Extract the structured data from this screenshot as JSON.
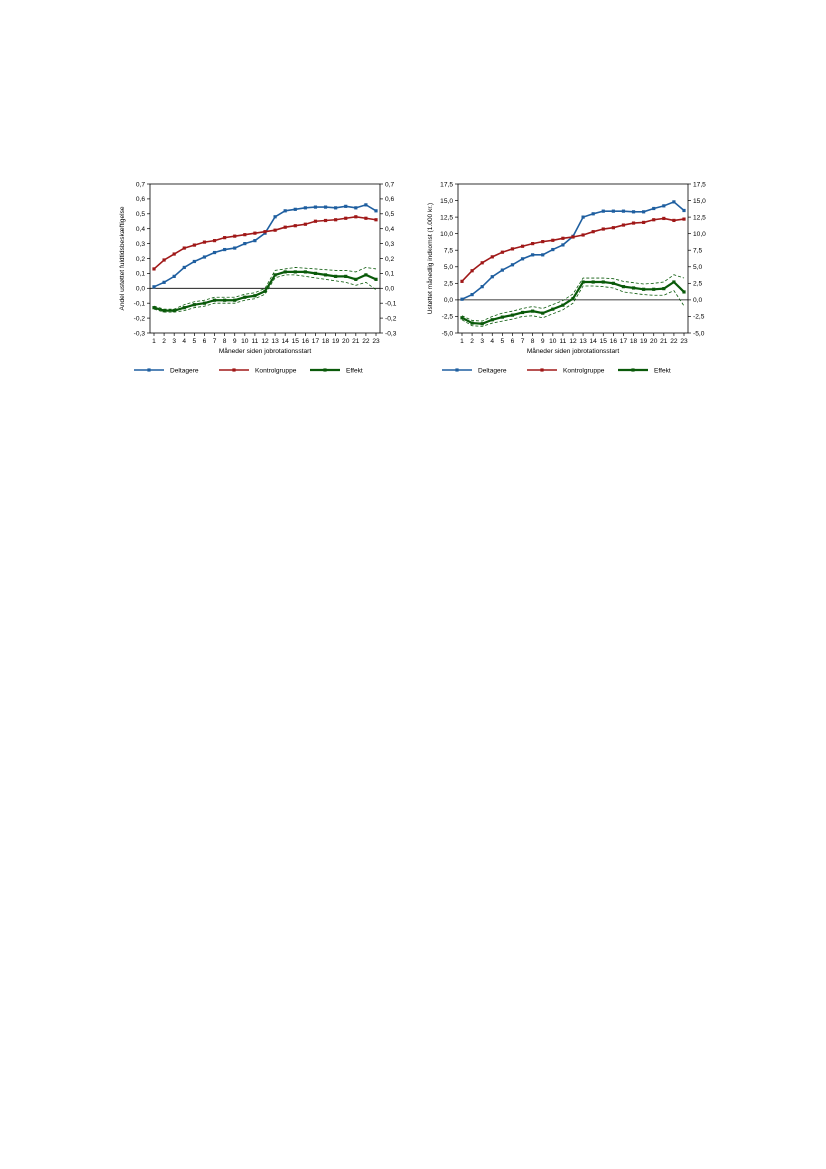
{
  "colors": {
    "deltagere": "#1f5fa0",
    "kontrolgruppe": "#a01818",
    "effekt": "#0a5a0a"
  },
  "chart_data": [
    {
      "type": "line",
      "ylabel": "Andel ustøttet fuldtidsbeskæftigelse",
      "xlabel": "Måneder siden jobrotationsstart",
      "x": [
        1,
        2,
        3,
        4,
        5,
        6,
        7,
        8,
        9,
        10,
        11,
        12,
        13,
        14,
        15,
        16,
        17,
        18,
        19,
        20,
        21,
        22,
        23
      ],
      "ylim": [
        -0.3,
        0.7
      ],
      "yticks": [
        -0.3,
        -0.2,
        -0.1,
        0.0,
        0.1,
        0.2,
        0.3,
        0.4,
        0.5,
        0.6,
        0.7
      ],
      "yticklabels": [
        "-0,3",
        "-0,2",
        "-0,1",
        "0,0",
        "0,1",
        "0,2",
        "0,3",
        "0,4",
        "0,5",
        "0,6",
        "0,7"
      ],
      "legend": "bottom",
      "zero_line": true,
      "series": [
        {
          "name": "Deltagere",
          "color_key": "deltagere",
          "values": [
            0.01,
            0.04,
            0.08,
            0.14,
            0.18,
            0.21,
            0.24,
            0.26,
            0.27,
            0.3,
            0.32,
            0.37,
            0.48,
            0.52,
            0.53,
            0.54,
            0.545,
            0.545,
            0.54,
            0.55,
            0.54,
            0.56,
            0.52
          ]
        },
        {
          "name": "Kontrolgruppe",
          "color_key": "kontrolgruppe",
          "values": [
            0.13,
            0.19,
            0.23,
            0.27,
            0.29,
            0.31,
            0.32,
            0.34,
            0.35,
            0.36,
            0.37,
            0.38,
            0.39,
            0.41,
            0.42,
            0.43,
            0.45,
            0.455,
            0.46,
            0.47,
            0.48,
            0.47,
            0.46
          ]
        },
        {
          "name": "Effekt",
          "color_key": "effekt",
          "bold": true,
          "values": [
            -0.13,
            -0.15,
            -0.15,
            -0.13,
            -0.11,
            -0.1,
            -0.08,
            -0.08,
            -0.08,
            -0.06,
            -0.05,
            -0.02,
            0.09,
            0.11,
            0.11,
            0.11,
            0.1,
            0.09,
            0.08,
            0.08,
            0.06,
            0.09,
            0.06
          ],
          "ci_upper": [
            -0.12,
            -0.14,
            -0.14,
            -0.11,
            -0.09,
            -0.08,
            -0.06,
            -0.06,
            -0.06,
            -0.04,
            -0.03,
            0.0,
            0.12,
            0.13,
            0.14,
            0.135,
            0.13,
            0.125,
            0.12,
            0.12,
            0.11,
            0.14,
            0.13
          ],
          "ci_lower": [
            -0.14,
            -0.16,
            -0.16,
            -0.15,
            -0.13,
            -0.12,
            -0.1,
            -0.1,
            -0.1,
            -0.08,
            -0.07,
            -0.04,
            0.07,
            0.09,
            0.09,
            0.08,
            0.07,
            0.06,
            0.05,
            0.04,
            0.02,
            0.04,
            -0.01
          ]
        }
      ]
    },
    {
      "type": "line",
      "ylabel": "Ustøttet månedlig indkomst (1.000 kr.)",
      "xlabel": "Måneder siden jobrotationsstart",
      "x": [
        1,
        2,
        3,
        4,
        5,
        6,
        7,
        8,
        9,
        10,
        11,
        12,
        13,
        14,
        15,
        16,
        17,
        18,
        19,
        20,
        21,
        22,
        23
      ],
      "ylim": [
        -5.0,
        17.5
      ],
      "yticks": [
        -5.0,
        -2.5,
        0.0,
        2.5,
        5.0,
        7.5,
        10.0,
        12.5,
        15.0,
        17.5
      ],
      "yticklabels": [
        "-5,0",
        "-2,5",
        "0,0",
        "2,5",
        "5,0",
        "7,5",
        "10,0",
        "12,5",
        "15,0",
        "17,5"
      ],
      "legend": "bottom",
      "zero_line": true,
      "series": [
        {
          "name": "Deltagere",
          "color_key": "deltagere",
          "values": [
            0.1,
            0.8,
            2.0,
            3.5,
            4.5,
            5.3,
            6.2,
            6.8,
            6.8,
            7.6,
            8.3,
            9.6,
            12.5,
            13.0,
            13.4,
            13.4,
            13.4,
            13.3,
            13.3,
            13.8,
            14.2,
            14.8,
            13.5
          ]
        },
        {
          "name": "Kontrolgruppe",
          "color_key": "kontrolgruppe",
          "values": [
            2.8,
            4.4,
            5.6,
            6.5,
            7.2,
            7.7,
            8.1,
            8.5,
            8.8,
            9.0,
            9.3,
            9.5,
            9.8,
            10.3,
            10.7,
            10.9,
            11.3,
            11.6,
            11.7,
            12.1,
            12.3,
            12.0,
            12.2
          ]
        },
        {
          "name": "Effekt",
          "color_key": "effekt",
          "bold": true,
          "values": [
            -2.7,
            -3.5,
            -3.6,
            -3.0,
            -2.6,
            -2.3,
            -1.9,
            -1.7,
            -2.0,
            -1.4,
            -0.8,
            0.2,
            2.7,
            2.7,
            2.7,
            2.5,
            2.0,
            1.8,
            1.6,
            1.6,
            1.7,
            2.7,
            1.2
          ],
          "ci_upper": [
            -2.4,
            -3.1,
            -3.2,
            -2.5,
            -2.0,
            -1.7,
            -1.3,
            -1.0,
            -1.3,
            -0.7,
            -0.1,
            0.9,
            3.3,
            3.3,
            3.3,
            3.2,
            2.8,
            2.6,
            2.4,
            2.5,
            2.7,
            3.8,
            3.3
          ],
          "ci_lower": [
            -3.0,
            -3.9,
            -4.0,
            -3.5,
            -3.2,
            -2.9,
            -2.5,
            -2.4,
            -2.7,
            -2.1,
            -1.5,
            -0.5,
            2.1,
            2.1,
            2.0,
            1.8,
            1.2,
            1.0,
            0.8,
            0.7,
            0.7,
            1.4,
            -0.9
          ]
        }
      ]
    }
  ]
}
